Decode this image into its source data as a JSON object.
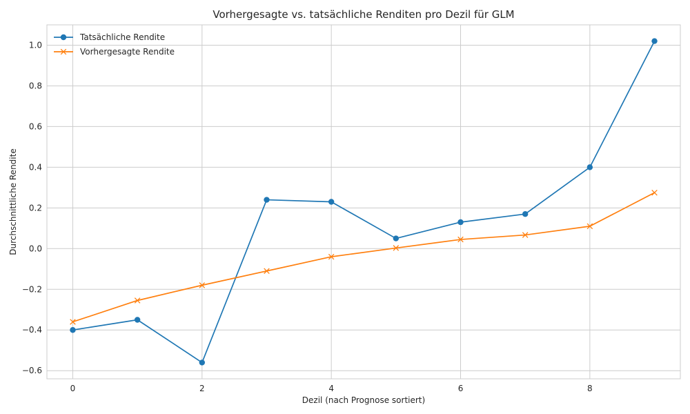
{
  "chart_data": {
    "type": "line",
    "title": "Vorhergesagte vs. tatsächliche Renditen pro Dezil für GLM",
    "xlabel": "Dezil (nach Prognose sortiert)",
    "ylabel": "Durchschnittliche Rendite",
    "xlim": [
      -0.4,
      9.4
    ],
    "ylim": [
      -0.64,
      1.1
    ],
    "x_ticks": [
      0,
      2,
      4,
      6,
      8
    ],
    "x_tick_labels": [
      "0",
      "2",
      "4",
      "6",
      "8"
    ],
    "y_ticks": [
      -0.6,
      -0.4,
      -0.2,
      0.0,
      0.2,
      0.4,
      0.6,
      0.8,
      1.0
    ],
    "y_tick_labels": [
      "−0.6",
      "−0.4",
      "−0.2",
      "0.0",
      "0.2",
      "0.4",
      "0.6",
      "0.8",
      "1.0"
    ],
    "grid": true,
    "legend_position": "top-left",
    "x": [
      0,
      1,
      2,
      3,
      4,
      5,
      6,
      7,
      8,
      9
    ],
    "series": [
      {
        "name": "Tatsächliche Rendite",
        "color": "#1f77b4",
        "marker": "circle",
        "values": [
          -0.4,
          -0.35,
          -0.56,
          0.24,
          0.23,
          0.05,
          0.13,
          0.17,
          0.4,
          1.02
        ]
      },
      {
        "name": "Vorhergesagte Rendite",
        "color": "#ff7f0e",
        "marker": "x",
        "values": [
          -0.36,
          -0.255,
          -0.18,
          -0.11,
          -0.04,
          0.003,
          0.045,
          0.067,
          0.11,
          0.275
        ]
      }
    ]
  }
}
